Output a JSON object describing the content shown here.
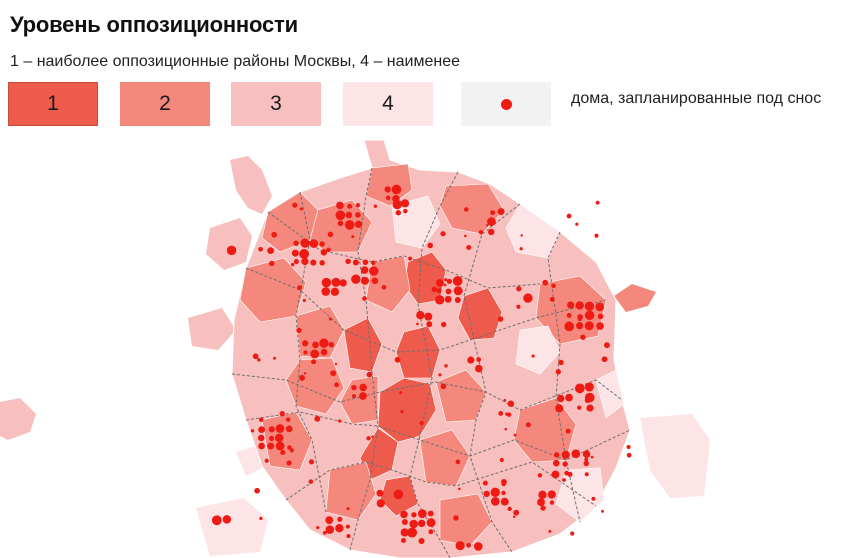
{
  "title": "Уровень оппозиционности",
  "subtitle": "1 – наиболее оппозиционные районы Москвы, 4 – наименее",
  "legend": {
    "levels": [
      {
        "label": "1",
        "color": "#ee5b4d"
      },
      {
        "label": "2",
        "color": "#f4887c"
      },
      {
        "label": "3",
        "color": "#f7bfbd"
      },
      {
        "label": "4",
        "color": "#fde4e6"
      }
    ],
    "dot": {
      "color": "#ee1a14",
      "background": "#f2f2f2",
      "label": "дома, запланированные под снос"
    }
  },
  "colors": {
    "level1": "#ee5b4d",
    "level2": "#f4887c",
    "level3": "#f7bfbd",
    "level4": "#fde4e6",
    "demolition_dot": "#ee1a14",
    "border": "#6f6f6f"
  }
}
